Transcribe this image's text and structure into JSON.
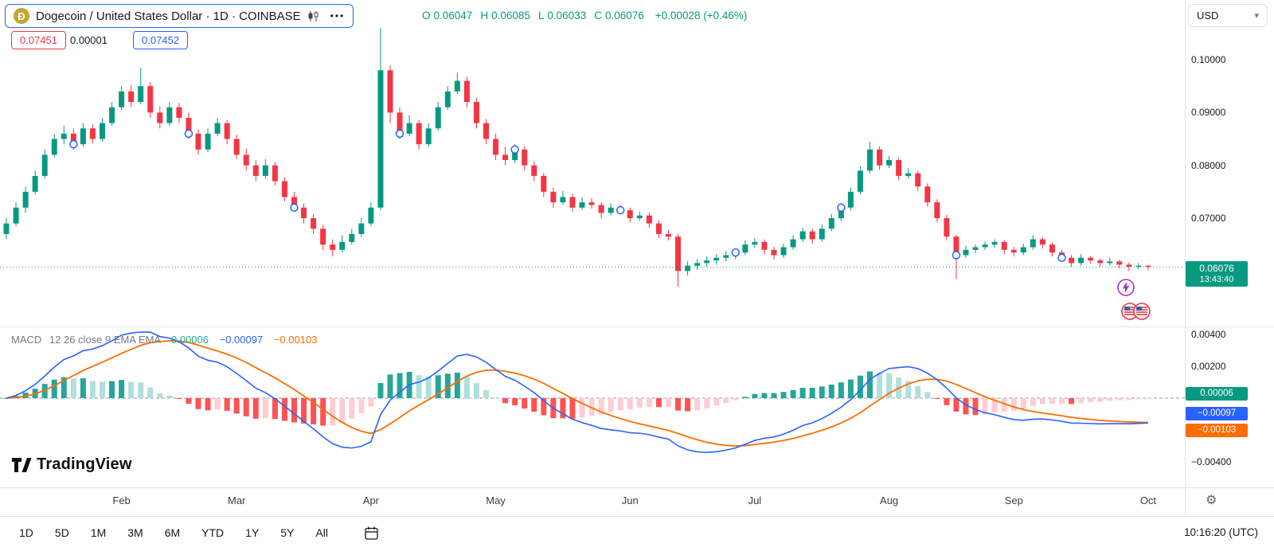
{
  "header": {
    "symbol_title": "Dogecoin / United States Dollar · 1D · COINBASE",
    "more_label": "•••",
    "ohlc": {
      "o_label": "O",
      "o_value": "0.06047",
      "h_label": "H",
      "h_value": "0.06085",
      "l_label": "L",
      "l_value": "0.06033",
      "c_label": "C",
      "c_value": "0.06076",
      "change": "+0.00028 (+0.46%)"
    },
    "currency_label": "USD"
  },
  "icons": {
    "chevron_down": "▾",
    "gear": "⚙"
  },
  "price_line_labels": {
    "red_value": "0.07451",
    "spread_value": "0.00001",
    "blue_value": "0.07452"
  },
  "price_scale": {
    "ticks": [
      "0.10000",
      "0.09000",
      "0.08000",
      "0.07000"
    ],
    "last_price": "0.06076",
    "countdown": "13:43:40"
  },
  "macd_pane": {
    "title": "MACD",
    "params": "12 26 close 9 EMA EMA",
    "hist_value": "0.00006",
    "macd_value": "−0.00097",
    "signal_value": "−0.00103",
    "ticks": [
      "0.00400",
      "0.00200",
      "−0.00400"
    ],
    "badges": {
      "hist": "0.00006",
      "macd": "−0.00097",
      "signal": "−0.00103"
    }
  },
  "branding": {
    "logo_text": "TradingView"
  },
  "footer": {
    "ranges": [
      "1D",
      "5D",
      "1M",
      "3M",
      "6M",
      "YTD",
      "1Y",
      "5Y",
      "All"
    ],
    "clock_label": "10:16:20 (UTC)"
  },
  "chart_data": {
    "type": "candlestick",
    "title": "Dogecoin / United States Dollar",
    "exchange": "COINBASE",
    "interval": "1D",
    "ohlc_current": {
      "open": 0.06047,
      "high": 0.06085,
      "low": 0.06033,
      "close": 0.06076,
      "change": 0.00028,
      "change_pct": 0.46
    },
    "last_price": 0.06076,
    "price_axis": {
      "ticks": [
        0.1,
        0.09,
        0.08,
        0.07
      ],
      "visible_range": [
        0.0555,
        0.1115
      ]
    },
    "months": [
      {
        "label": "Feb",
        "index": 12
      },
      {
        "label": "Mar",
        "index": 24
      },
      {
        "label": "Apr",
        "index": 38
      },
      {
        "label": "May",
        "index": 51
      },
      {
        "label": "Jun",
        "index": 65
      },
      {
        "label": "Jul",
        "index": 78
      },
      {
        "label": "Aug",
        "index": 92
      },
      {
        "label": "Sep",
        "index": 105
      },
      {
        "label": "Oct",
        "index": 119
      }
    ],
    "marker_indices": [
      7,
      19,
      30,
      41,
      53,
      64,
      76,
      87,
      99,
      110
    ],
    "candles": [
      [
        0.067,
        0.07,
        0.066,
        0.069
      ],
      [
        0.069,
        0.073,
        0.0685,
        0.072
      ],
      [
        0.072,
        0.076,
        0.071,
        0.075
      ],
      [
        0.075,
        0.079,
        0.0745,
        0.078
      ],
      [
        0.078,
        0.083,
        0.0775,
        0.082
      ],
      [
        0.082,
        0.086,
        0.0815,
        0.085
      ],
      [
        0.085,
        0.0875,
        0.084,
        0.086
      ],
      [
        0.086,
        0.087,
        0.083,
        0.084
      ],
      [
        0.084,
        0.088,
        0.0835,
        0.087
      ],
      [
        0.087,
        0.0878,
        0.0842,
        0.085
      ],
      [
        0.085,
        0.089,
        0.0845,
        0.088
      ],
      [
        0.088,
        0.092,
        0.0875,
        0.091
      ],
      [
        0.091,
        0.095,
        0.0905,
        0.094
      ],
      [
        0.094,
        0.0952,
        0.091,
        0.092
      ],
      [
        0.092,
        0.0985,
        0.0915,
        0.095
      ],
      [
        0.095,
        0.0958,
        0.089,
        0.09
      ],
      [
        0.09,
        0.0912,
        0.087,
        0.088
      ],
      [
        0.088,
        0.092,
        0.0875,
        0.091
      ],
      [
        0.091,
        0.0918,
        0.088,
        0.089
      ],
      [
        0.089,
        0.09,
        0.085,
        0.086
      ],
      [
        0.086,
        0.0868,
        0.082,
        0.083
      ],
      [
        0.083,
        0.087,
        0.0825,
        0.086
      ],
      [
        0.086,
        0.089,
        0.0855,
        0.088
      ],
      [
        0.088,
        0.0886,
        0.084,
        0.085
      ],
      [
        0.085,
        0.0858,
        0.0812,
        0.082
      ],
      [
        0.082,
        0.0832,
        0.079,
        0.08
      ],
      [
        0.08,
        0.081,
        0.077,
        0.078
      ],
      [
        0.078,
        0.0812,
        0.0775,
        0.08
      ],
      [
        0.08,
        0.0806,
        0.0762,
        0.077
      ],
      [
        0.077,
        0.0778,
        0.0732,
        0.074
      ],
      [
        0.074,
        0.075,
        0.0712,
        0.072
      ],
      [
        0.072,
        0.0728,
        0.069,
        0.07
      ],
      [
        0.07,
        0.0708,
        0.067,
        0.068
      ],
      [
        0.068,
        0.0688,
        0.064,
        0.065
      ],
      [
        0.065,
        0.066,
        0.0628,
        0.064
      ],
      [
        0.064,
        0.0668,
        0.0635,
        0.0655
      ],
      [
        0.0655,
        0.068,
        0.065,
        0.067
      ],
      [
        0.067,
        0.07,
        0.0665,
        0.069
      ],
      [
        0.069,
        0.073,
        0.0685,
        0.072
      ],
      [
        0.072,
        0.106,
        0.0715,
        0.098
      ],
      [
        0.098,
        0.099,
        0.088,
        0.09
      ],
      [
        0.09,
        0.091,
        0.085,
        0.086
      ],
      [
        0.086,
        0.0895,
        0.0855,
        0.088
      ],
      [
        0.088,
        0.0886,
        0.083,
        0.084
      ],
      [
        0.084,
        0.088,
        0.0835,
        0.087
      ],
      [
        0.087,
        0.092,
        0.0865,
        0.091
      ],
      [
        0.091,
        0.095,
        0.0905,
        0.094
      ],
      [
        0.094,
        0.0975,
        0.0935,
        0.096
      ],
      [
        0.096,
        0.0968,
        0.091,
        0.092
      ],
      [
        0.092,
        0.0928,
        0.087,
        0.088
      ],
      [
        0.088,
        0.0888,
        0.084,
        0.085
      ],
      [
        0.085,
        0.086,
        0.081,
        0.082
      ],
      [
        0.082,
        0.0835,
        0.08,
        0.081
      ],
      [
        0.081,
        0.084,
        0.0805,
        0.083
      ],
      [
        0.083,
        0.0836,
        0.079,
        0.08
      ],
      [
        0.08,
        0.0808,
        0.077,
        0.078
      ],
      [
        0.078,
        0.0786,
        0.074,
        0.075
      ],
      [
        0.075,
        0.0758,
        0.072,
        0.073
      ],
      [
        0.073,
        0.0752,
        0.0725,
        0.074
      ],
      [
        0.074,
        0.0746,
        0.0712,
        0.072
      ],
      [
        0.072,
        0.074,
        0.0715,
        0.073
      ],
      [
        0.073,
        0.0738,
        0.0718,
        0.0725
      ],
      [
        0.0725,
        0.073,
        0.07,
        0.071
      ],
      [
        0.071,
        0.0728,
        0.0705,
        0.072
      ],
      [
        0.072,
        0.0726,
        0.0708,
        0.0715
      ],
      [
        0.0715,
        0.072,
        0.0692,
        0.07
      ],
      [
        0.07,
        0.0712,
        0.0695,
        0.0705
      ],
      [
        0.0705,
        0.071,
        0.0682,
        0.069
      ],
      [
        0.069,
        0.0696,
        0.0662,
        0.067
      ],
      [
        0.067,
        0.0678,
        0.0658,
        0.0665
      ],
      [
        0.0665,
        0.067,
        0.057,
        0.06
      ],
      [
        0.06,
        0.0618,
        0.0592,
        0.061
      ],
      [
        0.061,
        0.0622,
        0.0602,
        0.0615
      ],
      [
        0.0615,
        0.0628,
        0.0608,
        0.062
      ],
      [
        0.062,
        0.0632,
        0.0612,
        0.0625
      ],
      [
        0.0625,
        0.0638,
        0.0618,
        0.063
      ],
      [
        0.063,
        0.0642,
        0.0622,
        0.0635
      ],
      [
        0.0635,
        0.0658,
        0.063,
        0.065
      ],
      [
        0.065,
        0.0662,
        0.0644,
        0.0655
      ],
      [
        0.0655,
        0.066,
        0.0632,
        0.064
      ],
      [
        0.064,
        0.0646,
        0.0622,
        0.063
      ],
      [
        0.063,
        0.0652,
        0.0625,
        0.0645
      ],
      [
        0.0645,
        0.0668,
        0.064,
        0.066
      ],
      [
        0.066,
        0.0682,
        0.0655,
        0.0675
      ],
      [
        0.0675,
        0.068,
        0.0652,
        0.066
      ],
      [
        0.066,
        0.0688,
        0.0655,
        0.068
      ],
      [
        0.068,
        0.0708,
        0.0675,
        0.07
      ],
      [
        0.07,
        0.0728,
        0.0695,
        0.072
      ],
      [
        0.072,
        0.0758,
        0.0715,
        0.075
      ],
      [
        0.075,
        0.0798,
        0.0745,
        0.079
      ],
      [
        0.079,
        0.0845,
        0.0785,
        0.083
      ],
      [
        0.083,
        0.0836,
        0.0792,
        0.08
      ],
      [
        0.08,
        0.0818,
        0.0795,
        0.081
      ],
      [
        0.081,
        0.0815,
        0.0772,
        0.078
      ],
      [
        0.078,
        0.0795,
        0.0775,
        0.0785
      ],
      [
        0.0785,
        0.079,
        0.0752,
        0.076
      ],
      [
        0.076,
        0.0766,
        0.0722,
        0.073
      ],
      [
        0.073,
        0.0736,
        0.0692,
        0.07
      ],
      [
        0.07,
        0.0706,
        0.0658,
        0.0665
      ],
      [
        0.0665,
        0.0668,
        0.0585,
        0.063
      ],
      [
        0.063,
        0.0648,
        0.0625,
        0.064
      ],
      [
        0.064,
        0.065,
        0.0634,
        0.0645
      ],
      [
        0.0645,
        0.0656,
        0.064,
        0.065
      ],
      [
        0.065,
        0.066,
        0.0644,
        0.0655
      ],
      [
        0.0655,
        0.0658,
        0.0632,
        0.064
      ],
      [
        0.064,
        0.0646,
        0.0628,
        0.0635
      ],
      [
        0.0635,
        0.0652,
        0.063,
        0.0645
      ],
      [
        0.0645,
        0.0668,
        0.064,
        0.066
      ],
      [
        0.066,
        0.0664,
        0.0642,
        0.065
      ],
      [
        0.065,
        0.0654,
        0.0628,
        0.0635
      ],
      [
        0.0635,
        0.064,
        0.0618,
        0.0625
      ],
      [
        0.0625,
        0.063,
        0.0608,
        0.0615
      ],
      [
        0.0615,
        0.0632,
        0.061,
        0.0625
      ],
      [
        0.0625,
        0.0628,
        0.0614,
        0.062
      ],
      [
        0.062,
        0.0624,
        0.0608,
        0.0615
      ],
      [
        0.0615,
        0.0625,
        0.061,
        0.0618
      ],
      [
        0.0618,
        0.0621,
        0.0605,
        0.0612
      ],
      [
        0.0612,
        0.0616,
        0.06,
        0.0608
      ],
      [
        0.0608,
        0.0615,
        0.0604,
        0.061
      ],
      [
        0.061,
        0.0612,
        0.0601,
        0.0608
      ]
    ],
    "indicator": {
      "type": "MACD",
      "fast": 12,
      "slow": 26,
      "source": "close",
      "signal_period": 9,
      "last": {
        "histogram": 6e-05,
        "macd": -0.00097,
        "signal": -0.00103
      },
      "axis_ticks": [
        0.004,
        0.002,
        -0.004
      ]
    },
    "colors": {
      "up": "#089981",
      "down": "#F23645",
      "macd_line": "#2962FF",
      "signal_line": "#FF6D00",
      "hist_grow_above": "#26A69A",
      "hist_fall_above": "#B2DFDB",
      "hist_grow_below": "#FFCDD2",
      "hist_fall_below": "#FF5252",
      "badge_green": "#089981",
      "badge_blue": "#2962FF",
      "badge_orange": "#FF6D00",
      "last_price_line": "#089981",
      "zero_line": "#9598A1"
    }
  }
}
